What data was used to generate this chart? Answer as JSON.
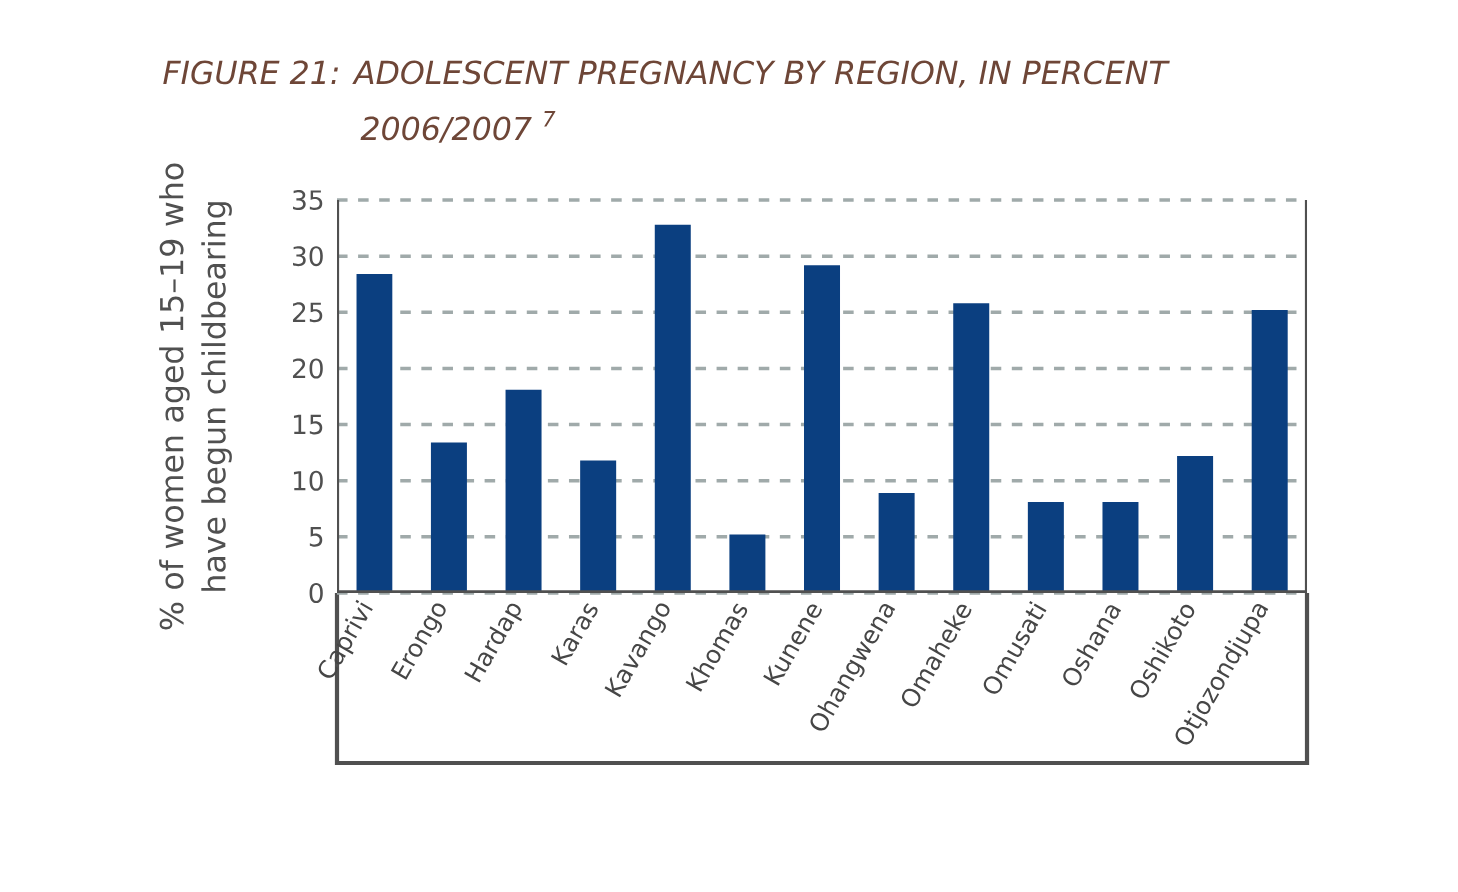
{
  "chart_data": {
    "type": "bar",
    "title": "FIGURE 21: ADOLESCENT PREGNANCY BY REGION, IN PERCENT",
    "subtitle": "2006/2007 $^{7}$",
    "ylabel": "% of women aged 15–19 who have begun childbearing",
    "categories": [
      "Caprivi",
      "Erongo",
      "Hardap",
      "Karas",
      "Kavango",
      "Khomas",
      "Kunene",
      "Ohangwena",
      "Omaheke",
      "Omusati",
      "Oshana",
      "Oshikoto",
      "Otjozondjupa"
    ],
    "values": [
      28.4,
      13.4,
      18.1,
      11.8,
      32.8,
      5.2,
      29.2,
      8.9,
      25.8,
      8.1,
      8.1,
      12.2,
      25.2
    ],
    "color": "#0b3f80",
    "ylim": [
      0,
      35
    ],
    "yticks": [
      0,
      5,
      10,
      15,
      20,
      25,
      30,
      35
    ],
    "grid": "y"
  }
}
